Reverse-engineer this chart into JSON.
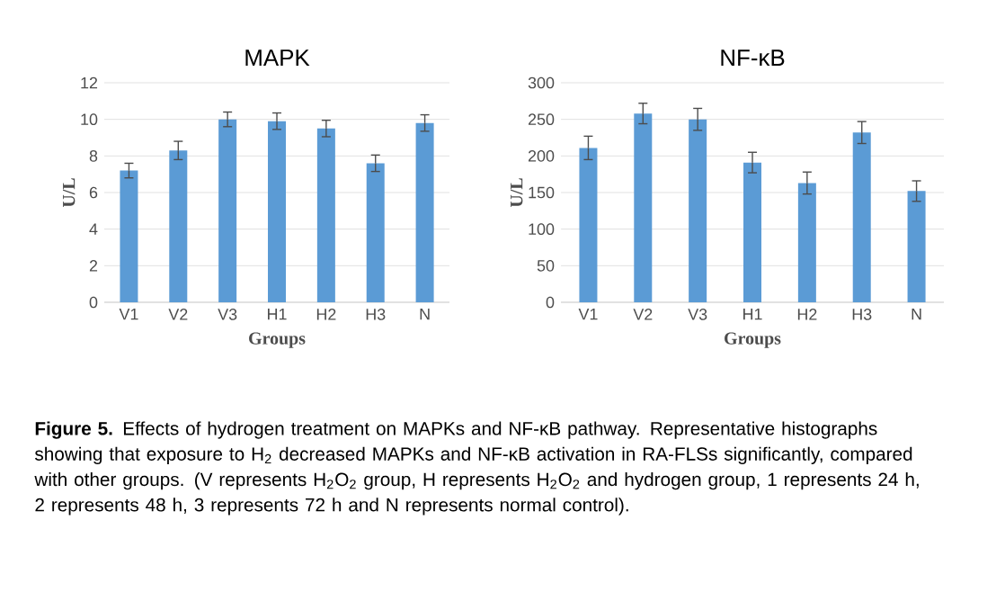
{
  "chart_data": [
    {
      "type": "bar",
      "title": "MAPK",
      "xlabel": "Groups",
      "ylabel": "U/L",
      "categories": [
        "V1",
        "V2",
        "V3",
        "H1",
        "H2",
        "H3",
        "N"
      ],
      "values": [
        7.2,
        8.3,
        10.0,
        9.9,
        9.5,
        7.6,
        9.8
      ],
      "errors": [
        0.4,
        0.5,
        0.4,
        0.45,
        0.45,
        0.45,
        0.45
      ],
      "color": "#5b9bd5",
      "ylim": [
        0,
        12
      ],
      "yticks": [
        0,
        2,
        4,
        6,
        8,
        10,
        12
      ],
      "grid": "y"
    },
    {
      "type": "bar",
      "title": "NF-κB",
      "xlabel": "Groups",
      "ylabel": "U/L",
      "categories": [
        "V1",
        "V2",
        "V3",
        "H1",
        "H2",
        "H3",
        "N"
      ],
      "values": [
        211,
        258,
        250,
        191,
        163,
        232,
        152
      ],
      "errors": [
        16,
        14,
        15,
        14,
        15,
        15,
        14
      ],
      "color": "#5b9bd5",
      "ylim": [
        0,
        300
      ],
      "yticks": [
        0,
        50,
        100,
        150,
        200,
        250,
        300
      ],
      "grid": "y",
      "annotations": [
        "**Figure 5.** Effects of hydrogen treatment on MAPKs and NF-κB pathway. Representative histographs showing that exposure to H$_{2}$ decreased MAPKs and NF-κB activation in RA-FLSs significantly, compared with other groups. (V represents H$_{2}$O$_{2}$ group, H represents H$_{2}$O$_{2}$ and hydrogen group, 1 represents 24 h, 2 represents 48 h, 3 represents 72 h and N represents normal control)."
      ]
    }
  ]
}
